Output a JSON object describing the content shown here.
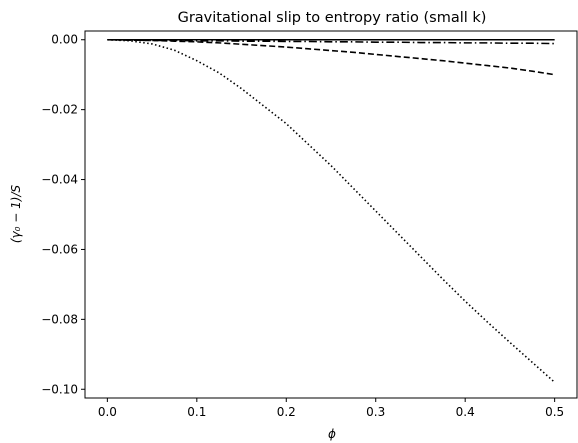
{
  "chart_data": {
    "type": "line",
    "title": "Gravitational slip to entropy ratio (small k)",
    "xlabel": "ϕ",
    "ylabel": "(γ₀ − 1)/S",
    "xlim": [
      -0.025,
      0.525
    ],
    "ylim": [
      -0.1025,
      0.0025
    ],
    "xticks": [
      0.0,
      0.1,
      0.2,
      0.3,
      0.4,
      0.5
    ],
    "xtick_labels": [
      "0.0",
      "0.1",
      "0.2",
      "0.3",
      "0.4",
      "0.5"
    ],
    "yticks": [
      0.0,
      -0.02,
      -0.04,
      -0.06,
      -0.08,
      -0.1
    ],
    "ytick_labels": [
      "0.00",
      "−0.02",
      "−0.04",
      "−0.06",
      "−0.08",
      "−0.10"
    ],
    "grid": false,
    "legend": "none",
    "x": [
      0.0,
      0.025,
      0.05,
      0.075,
      0.1,
      0.125,
      0.15,
      0.175,
      0.2,
      0.225,
      0.25,
      0.275,
      0.3,
      0.325,
      0.35,
      0.375,
      0.4,
      0.425,
      0.45,
      0.475,
      0.5
    ],
    "series": [
      {
        "style": "solid",
        "color": "#000000",
        "values": [
          0.0,
          0.0,
          0.0,
          0.0,
          0.0,
          0.0,
          0.0,
          0.0,
          0.0,
          0.0,
          0.0,
          0.0,
          0.0,
          0.0,
          0.0,
          0.0,
          0.0,
          0.0,
          0.0,
          0.0,
          0.0
        ]
      },
      {
        "style": "dashdot",
        "color": "#000000",
        "values": [
          0.0,
          -0.0001,
          -0.0002,
          -0.0002,
          -0.0003,
          -0.0003,
          -0.0004,
          -0.0004,
          -0.0005,
          -0.0005,
          -0.0006,
          -0.0006,
          -0.0007,
          -0.0007,
          -0.0008,
          -0.0008,
          -0.0009,
          -0.0009,
          -0.001,
          -0.001,
          -0.0011
        ]
      },
      {
        "style": "dashed",
        "color": "#000000",
        "values": [
          0.0,
          -0.0001,
          -0.0002,
          -0.0004,
          -0.0006,
          -0.0009,
          -0.0013,
          -0.0017,
          -0.0021,
          -0.0026,
          -0.0031,
          -0.0036,
          -0.0042,
          -0.0048,
          -0.0054,
          -0.006,
          -0.0067,
          -0.0074,
          -0.0081,
          -0.009,
          -0.01
        ]
      },
      {
        "style": "dotted",
        "color": "#000000",
        "values": [
          0.0,
          -0.0003,
          -0.0012,
          -0.003,
          -0.006,
          -0.0095,
          -0.014,
          -0.019,
          -0.024,
          -0.03,
          -0.036,
          -0.0425,
          -0.049,
          -0.0555,
          -0.062,
          -0.0685,
          -0.0748,
          -0.0808,
          -0.0866,
          -0.0923,
          -0.098
        ]
      }
    ]
  }
}
